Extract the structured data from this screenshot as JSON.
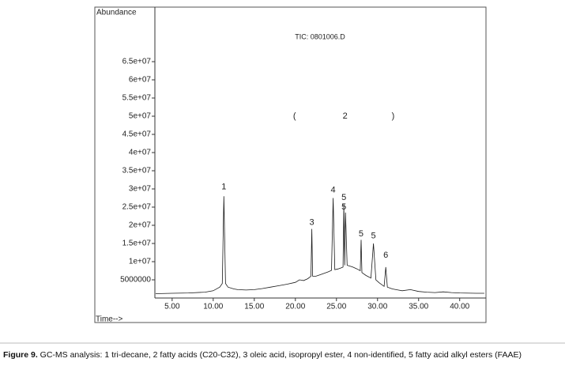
{
  "chart_data": {
    "type": "line",
    "title": "TIC: 0801006.D",
    "ylabel": "Abundance",
    "xlabel": "Time-->",
    "caption_label": "Figure 9.",
    "caption": " GC-MS analysis: 1 tri-decane, 2 fatty acids (C20-C32), 3 oleic acid, isopropyl ester, 4 non-identified, 5 fatty acid alkyl esters (FAAE)",
    "xlim": [
      2.9,
      43.2
    ],
    "ylim": [
      0,
      80000000
    ],
    "xticks": [
      {
        "value": 5,
        "label": "5.00"
      },
      {
        "value": 10,
        "label": "10.00"
      },
      {
        "value": 15,
        "label": "15.00"
      },
      {
        "value": 20,
        "label": "20.00"
      },
      {
        "value": 25,
        "label": "25.00"
      },
      {
        "value": 30,
        "label": "30.00"
      },
      {
        "value": 35,
        "label": "35.00"
      },
      {
        "value": 40,
        "label": "40.00"
      }
    ],
    "yticks": [
      5000000,
      {
        "value": 10000000,
        "label": "1e+07"
      },
      {
        "value": 15000000,
        "label": "1.5e+07"
      },
      {
        "value": 20000000,
        "label": "2e+07"
      },
      {
        "value": 25000000,
        "label": "2.5e+07"
      },
      {
        "value": 30000000,
        "label": "3e+07"
      },
      {
        "value": 35000000,
        "label": "3.5e+07"
      },
      {
        "value": 40000000,
        "label": "4e+07"
      },
      {
        "value": 45000000,
        "label": "4.5e+07"
      },
      {
        "value": 50000000,
        "label": "5e+07"
      },
      {
        "value": 55000000,
        "label": "5.5e+07"
      },
      {
        "value": 60000000,
        "label": "6e+07"
      },
      {
        "value": 65000000,
        "label": "6.5e+07"
      }
    ],
    "series": [
      {
        "color": "#1a1a1a",
        "x": [
          3,
          5,
          7,
          9,
          10,
          10.8,
          11.1,
          11.3,
          11.5,
          11.8,
          12.5,
          13,
          14,
          15,
          16,
          17,
          18,
          19,
          20,
          20.5,
          21,
          21.5,
          21.9,
          22,
          22.1,
          22.5,
          23,
          23.5,
          24,
          24.4,
          24.6,
          24.8,
          25.2,
          25.6,
          25.8,
          25.9,
          26,
          26.1,
          26.3,
          26.6,
          27,
          27.5,
          27.9,
          28,
          28.1,
          28.6,
          29.2,
          29.5,
          29.8,
          30.2,
          30.8,
          31,
          31.2,
          31.8,
          32.5,
          33,
          34,
          35,
          36,
          37,
          38,
          39,
          40,
          42,
          43
        ],
        "values": [
          1200000,
          1300000,
          1400000,
          1600000,
          2000000,
          3000000,
          4000000,
          28000000,
          4000000,
          3000000,
          2500000,
          2300000,
          2200000,
          2300000,
          2600000,
          3000000,
          3400000,
          3800000,
          4300000,
          5000000,
          4800000,
          5300000,
          6000000,
          19000000,
          6000000,
          6000000,
          6400000,
          6800000,
          7200000,
          7600000,
          27500000,
          7800000,
          8000000,
          8300000,
          8500000,
          26000000,
          9000000,
          23500000,
          9000000,
          8800000,
          8500000,
          8000000,
          7500000,
          16000000,
          7000000,
          6200000,
          5500000,
          15000000,
          5000000,
          4200000,
          3200000,
          8500000,
          3000000,
          2500000,
          2200000,
          2000000,
          2300000,
          1800000,
          1600000,
          1500000,
          1700000,
          1500000,
          1400000,
          1300000,
          1300000
        ]
      }
    ],
    "annotations": [
      {
        "text": "1",
        "x": 11.3,
        "y": 30500000
      },
      {
        "text": "3",
        "x": 22,
        "y": 20700000
      },
      {
        "text": "4",
        "x": 24.6,
        "y": 29600000
      },
      {
        "text": "5",
        "x": 25.9,
        "y": 27600000
      },
      {
        "text": "5",
        "x": 25.9,
        "y": 25000000
      },
      {
        "text": "5",
        "x": 28,
        "y": 17600000
      },
      {
        "text": "5",
        "x": 29.5,
        "y": 17000000
      },
      {
        "text": "6",
        "x": 31,
        "y": 11700000
      },
      {
        "text": "(",
        "x": 19.9,
        "y": 50000000
      },
      {
        "text": "2",
        "x": 26.05,
        "y": 50000000
      },
      {
        "text": ")",
        "x": 31.9,
        "y": 50000000
      }
    ]
  }
}
